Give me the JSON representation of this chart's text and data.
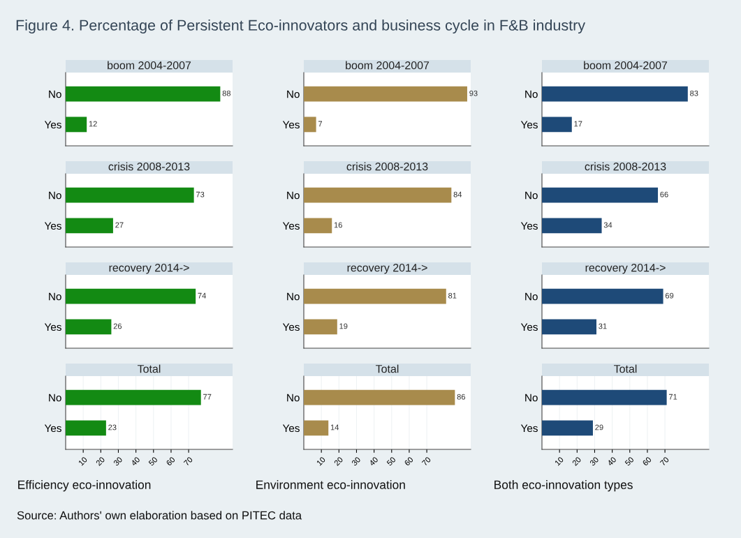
{
  "chart_data": [
    {
      "type": "bar",
      "orientation": "horizontal",
      "title": "boom 2004-2007",
      "annotations": [
        "Figure 4. Percentage of Persistent Eco-innovators and business cycle in F&B industry"
      ],
      "categories": [
        "No",
        "Yes"
      ],
      "values": [
        88,
        12
      ],
      "color": "#138a13",
      "data_labels": true,
      "xlim": [
        0,
        95
      ],
      "tick_labels": "y",
      "grid": "x"
    },
    {
      "type": "bar",
      "orientation": "horizontal",
      "title": "boom 2004-2007",
      "categories": [
        "No",
        "Yes"
      ],
      "values": [
        93,
        7
      ],
      "color": "#a88b4c",
      "data_labels": true,
      "xlim": [
        0,
        95
      ],
      "tick_labels": "y",
      "grid": "x"
    },
    {
      "type": "bar",
      "orientation": "horizontal",
      "title": "boom 2004-2007",
      "categories": [
        "No",
        "Yes"
      ],
      "values": [
        83,
        17
      ],
      "color": "#1e4a78",
      "data_labels": true,
      "xlim": [
        0,
        95
      ],
      "tick_labels": "y",
      "grid": "x"
    },
    {
      "type": "bar",
      "orientation": "horizontal",
      "title": "crisis 2008-2013",
      "categories": [
        "No",
        "Yes"
      ],
      "values": [
        73,
        27
      ],
      "color": "#138a13",
      "data_labels": true,
      "xlim": [
        0,
        95
      ],
      "tick_labels": "y",
      "grid": "x"
    },
    {
      "type": "bar",
      "orientation": "horizontal",
      "title": "crisis 2008-2013",
      "categories": [
        "No",
        "Yes"
      ],
      "values": [
        84,
        16
      ],
      "color": "#a88b4c",
      "data_labels": true,
      "xlim": [
        0,
        95
      ],
      "tick_labels": "y",
      "grid": "x"
    },
    {
      "type": "bar",
      "orientation": "horizontal",
      "title": "crisis 2008-2013",
      "categories": [
        "No",
        "Yes"
      ],
      "values": [
        66,
        34
      ],
      "color": "#1e4a78",
      "data_labels": true,
      "xlim": [
        0,
        95
      ],
      "tick_labels": "y",
      "grid": "x"
    },
    {
      "type": "bar",
      "orientation": "horizontal",
      "title": "recovery 2014->",
      "categories": [
        "No",
        "Yes"
      ],
      "values": [
        74,
        26
      ],
      "color": "#138a13",
      "data_labels": true,
      "xlim": [
        0,
        95
      ],
      "tick_labels": "y",
      "grid": "x"
    },
    {
      "type": "bar",
      "orientation": "horizontal",
      "title": "recovery 2014->",
      "categories": [
        "No",
        "Yes"
      ],
      "values": [
        81,
        19
      ],
      "color": "#a88b4c",
      "data_labels": true,
      "xlim": [
        0,
        95
      ],
      "tick_labels": "y",
      "grid": "x"
    },
    {
      "type": "bar",
      "orientation": "horizontal",
      "title": "recovery 2014->",
      "categories": [
        "No",
        "Yes"
      ],
      "values": [
        69,
        31
      ],
      "color": "#1e4a78",
      "data_labels": true,
      "xlim": [
        0,
        95
      ],
      "tick_labels": "y",
      "grid": "x"
    },
    {
      "type": "bar",
      "orientation": "horizontal",
      "title": "Total",
      "xlabel": "Efficiency eco-innovation",
      "annotations": [
        "Source: Authors' own elaboration based on PITEC data"
      ],
      "categories": [
        "No",
        "Yes"
      ],
      "values": [
        77,
        23
      ],
      "color": "#138a13",
      "data_labels": true,
      "xlim": [
        0,
        95
      ],
      "xticks": [
        10,
        20,
        30,
        40,
        50,
        60,
        70
      ],
      "grid": "x"
    },
    {
      "type": "bar",
      "orientation": "horizontal",
      "title": "Total",
      "xlabel": "Environment eco-innovation",
      "categories": [
        "No",
        "Yes"
      ],
      "values": [
        86,
        14
      ],
      "color": "#a88b4c",
      "data_labels": true,
      "xlim": [
        0,
        95
      ],
      "xticks": [
        10,
        20,
        30,
        40,
        50,
        60,
        70
      ],
      "grid": "x"
    },
    {
      "type": "bar",
      "orientation": "horizontal",
      "title": "Total",
      "xlabel": "Both eco-innovation types",
      "categories": [
        "No",
        "Yes"
      ],
      "values": [
        71,
        29
      ],
      "color": "#1e4a78",
      "data_labels": true,
      "xlim": [
        0,
        95
      ],
      "xticks": [
        10,
        20,
        30,
        40,
        50,
        60,
        70
      ],
      "grid": "x"
    }
  ]
}
